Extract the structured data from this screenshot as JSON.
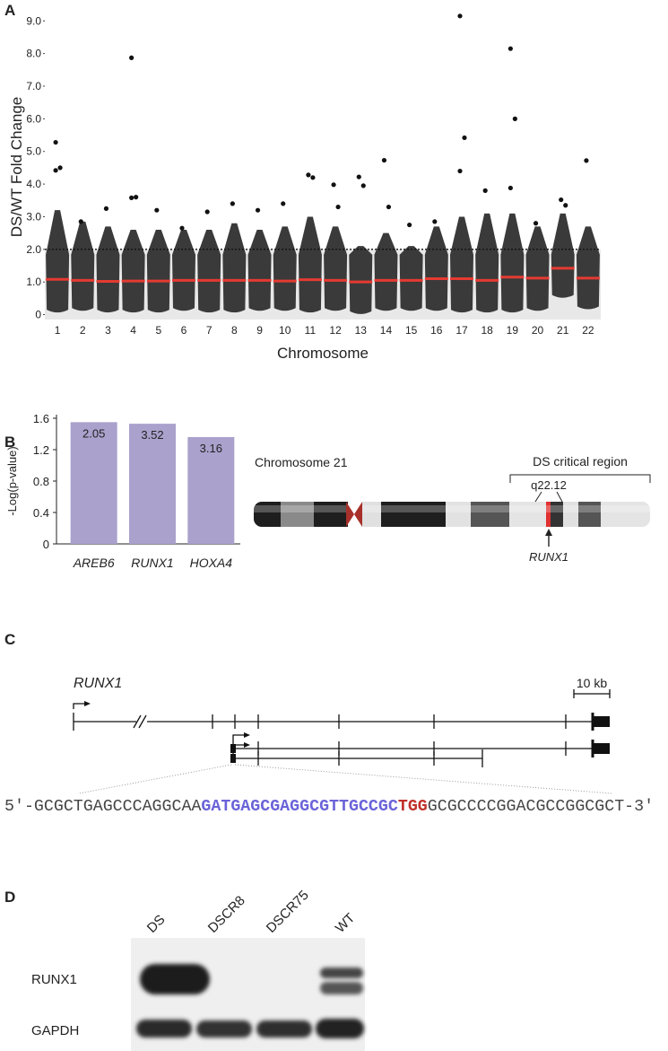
{
  "panel_labels": [
    "A",
    "B",
    "C",
    "D"
  ],
  "chart_data": [
    {
      "type": "strip",
      "ylabel": "DS/WT Fold Change",
      "xlabel": "Chromosome",
      "categories": [
        "1",
        "2",
        "3",
        "4",
        "5",
        "6",
        "7",
        "8",
        "9",
        "10",
        "11",
        "12",
        "13",
        "14",
        "15",
        "16",
        "17",
        "18",
        "19",
        "20",
        "21",
        "22"
      ],
      "medians": [
        1.08,
        1.05,
        1.02,
        1.03,
        1.03,
        1.05,
        1.05,
        1.05,
        1.05,
        1.03,
        1.07,
        1.05,
        1.0,
        1.05,
        1.05,
        1.1,
        1.1,
        1.05,
        1.15,
        1.12,
        1.42,
        1.12
      ],
      "ranges": [
        [
          0.15,
          3.2
        ],
        [
          0.2,
          2.85
        ],
        [
          0.15,
          2.7
        ],
        [
          0.15,
          2.6
        ],
        [
          0.15,
          2.6
        ],
        [
          0.2,
          2.6
        ],
        [
          0.15,
          2.6
        ],
        [
          0.15,
          2.8
        ],
        [
          0.2,
          2.6
        ],
        [
          0.2,
          2.7
        ],
        [
          0.15,
          3.0
        ],
        [
          0.2,
          2.7
        ],
        [
          0.1,
          2.1
        ],
        [
          0.2,
          2.5
        ],
        [
          0.2,
          2.1
        ],
        [
          0.2,
          2.7
        ],
        [
          0.15,
          3.0
        ],
        [
          0.15,
          3.1
        ],
        [
          0.15,
          3.1
        ],
        [
          0.2,
          2.7
        ],
        [
          0.6,
          3.1
        ],
        [
          0.25,
          2.7
        ]
      ],
      "outliers": [
        [
          5.28,
          4.5,
          4.42
        ],
        [
          2.85
        ],
        [
          3.25
        ],
        [
          7.87,
          3.6,
          3.58
        ],
        [
          3.2
        ],
        [
          2.65
        ],
        [
          3.15
        ],
        [
          3.4
        ],
        [
          3.2
        ],
        [
          3.4
        ],
        [
          4.28,
          4.2
        ],
        [
          3.98,
          3.3
        ],
        [
          4.22,
          3.95
        ],
        [
          4.73,
          3.3
        ],
        [
          2.75
        ],
        [
          2.85
        ],
        [
          9.15,
          5.42,
          4.4
        ],
        [
          3.8
        ],
        [
          8.15,
          6.0,
          3.88
        ],
        [
          2.8
        ],
        [
          3.52,
          3.35
        ],
        [
          4.72
        ]
      ],
      "threshold": 2,
      "color": "#3a3a3a",
      "median_color": "#e53a32",
      "shade_color": "#e8e8e8",
      "ylim": [
        -0.15,
        9.2
      ],
      "yticks": [
        0,
        {
          "value": 1,
          "label": "1.0"
        },
        {
          "value": 2,
          "label": "2.0"
        },
        {
          "value": 3,
          "label": "3.0"
        },
        {
          "value": 4,
          "label": "4.0"
        },
        {
          "value": 5,
          "label": "5.0"
        },
        {
          "value": 6,
          "label": "6.0"
        },
        {
          "value": 7,
          "label": "7.0"
        },
        {
          "value": 8,
          "label": "8.0"
        },
        {
          "value": 9,
          "label": "9.0"
        }
      ]
    },
    {
      "type": "bar",
      "ylabel": "-Log(p-value)",
      "categories": [
        "AREB6",
        "RUNX1",
        "HOXA4"
      ],
      "values": [
        1.55,
        1.53,
        1.36
      ],
      "annotations": [
        "2.05",
        "3.52",
        "3.16"
      ],
      "color": "#aaa1cc",
      "ylim": [
        0,
        1.6
      ],
      "yticks": [
        0,
        0.4,
        0.8,
        1.2,
        1.6
      ]
    }
  ],
  "ideogram": {
    "title": "Chromosome 21",
    "region": "DS critical region",
    "band": "q22.12",
    "gene": "RUNX1"
  },
  "gene_diagram": {
    "gene": "RUNX1",
    "scale": "10 kb",
    "sequence": {
      "prefix": "5′-GCGCTGAGCCCAGGCAA",
      "guide": "GATGAGCGAGGCGTTGCCGC",
      "pam": "TGG",
      "suffix": "GCGCCCCGGACGCCGGCGCT-3′"
    }
  },
  "blot": {
    "lanes": [
      "DS",
      "DSCR8",
      "DSCR75",
      "WT"
    ],
    "proteins": [
      "RUNX1",
      "GAPDH"
    ]
  }
}
